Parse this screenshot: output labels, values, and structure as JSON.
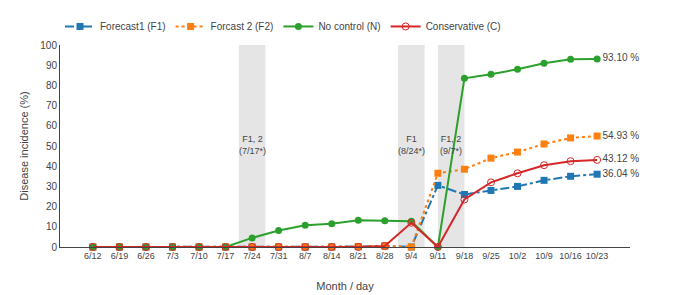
{
  "chart_data": {
    "type": "line",
    "xlabel": "Month / day",
    "ylabel": "Disease incidence (%)",
    "categories": [
      "6/12",
      "6/19",
      "6/26",
      "7/3",
      "7/10",
      "7/17",
      "7/24",
      "7/31",
      "8/7",
      "8/14",
      "8/21",
      "8/28",
      "9/4",
      "9/11",
      "9/18",
      "9/25",
      "10/2",
      "10/9",
      "10/16",
      "10/23"
    ],
    "series": [
      {
        "name": "Forecast1 (F1)",
        "line_style": "dashdot",
        "marker": "square",
        "values": [
          0,
          0,
          0,
          0,
          0,
          0,
          0,
          0,
          0,
          0,
          0.2,
          0.5,
          0,
          30.5,
          26.0,
          28.0,
          30.0,
          33.0,
          35.0,
          36.04
        ],
        "value_labels": [
          null,
          null,
          null,
          null,
          null,
          null,
          null,
          null,
          null,
          null,
          null,
          null,
          null,
          null,
          null,
          null,
          null,
          null,
          null,
          "36.04 %"
        ]
      },
      {
        "name": "Forcast 2 (F2)",
        "line_style": "dot",
        "marker": "square",
        "values": [
          0,
          0,
          0,
          0,
          0,
          0,
          0,
          0,
          0,
          0,
          0.2,
          0.5,
          0,
          36.5,
          38.5,
          44.0,
          47.0,
          51.0,
          54.0,
          54.93
        ],
        "value_labels": [
          null,
          null,
          null,
          null,
          null,
          null,
          null,
          null,
          null,
          null,
          null,
          null,
          null,
          null,
          null,
          null,
          null,
          null,
          null,
          "54.93 %"
        ]
      },
      {
        "name": "No control (N)",
        "line_style": "solid",
        "marker": "circle",
        "values": [
          0,
          0,
          0,
          0,
          0,
          0,
          4.5,
          8.2,
          10.8,
          11.5,
          13.2,
          13.0,
          12.8,
          0,
          83.5,
          85.5,
          88.0,
          91.0,
          93.0,
          93.1
        ],
        "value_labels": [
          null,
          null,
          null,
          null,
          null,
          null,
          null,
          null,
          null,
          null,
          null,
          null,
          null,
          null,
          null,
          null,
          null,
          null,
          null,
          "93.10 %"
        ]
      },
      {
        "name": "Conservative (C)",
        "line_style": "solid",
        "marker": "circle-open",
        "values": [
          0,
          0,
          0,
          0,
          0,
          0,
          0,
          0,
          0,
          0,
          0,
          0.5,
          12.0,
          0,
          23.5,
          32.0,
          36.5,
          40.5,
          42.5,
          43.12
        ],
        "value_labels": [
          null,
          null,
          null,
          null,
          null,
          null,
          null,
          null,
          null,
          null,
          null,
          null,
          null,
          null,
          null,
          null,
          null,
          null,
          null,
          "43.12 %"
        ]
      }
    ],
    "bands": [
      {
        "x0": 5.5,
        "x1": 6.5,
        "label": "F1, 2\n(7/17*)"
      },
      {
        "x0": 11.5,
        "x1": 12.5,
        "label": "F1\n(8/24*)"
      },
      {
        "x0": 13.0,
        "x1": 14.0,
        "label": "F1, 2\n(9/7*)"
      }
    ],
    "ylim": [
      0,
      100
    ],
    "yticks": [
      0,
      10,
      20,
      30,
      40,
      50,
      60,
      70,
      80,
      90,
      100
    ],
    "grid": false,
    "legend": "upper left"
  }
}
